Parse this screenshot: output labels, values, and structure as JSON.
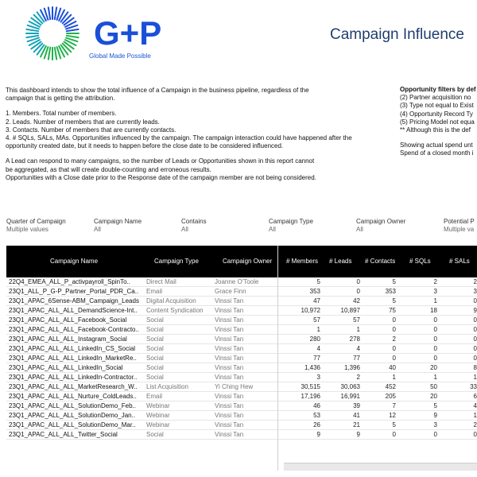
{
  "brand": {
    "logo_text": "G+P",
    "tagline": "Global Made Possible",
    "colors": {
      "blue": "#1a4fd8",
      "green": "#21b24b",
      "teal": "#13a3b8"
    }
  },
  "title": "Campaign Influence",
  "intro": {
    "lines": [
      "This dashboard intends to show the total influence of a Campaign in the business pipeline, regardless of the",
      "campaign that is getting the attribution.",
      "",
      "1. Members. Total number of members.",
      "2. Leads. Number of members that are currently leads.",
      "3. Contacts. Number of members that are currently contacts.",
      "4. # SQLs, SALs, MAs. Opportunities influenced by the campaign. The campaign interaction could have happened after the",
      "opportunity created date, but it needs to happen before the close date to be considered influenced.",
      "",
      "A Lead can respond to many campaigns, so the number of Leads or Opportunities shown in this report cannot",
      "be aggregated, as that will create double-counting and erroneous results.",
      "Opportunities with a Close date prior to the Response date of the campaign member are not being considered."
    ]
  },
  "opp_filters": {
    "heading": "Opportunity filters by def",
    "lines": [
      "(2) Partner acquisition no",
      "(3) Type not equal to Exist",
      "(4) Opportunity Record Ty",
      "(5) Pricing Model not equa",
      "** Although this is the def",
      "",
      "Showing actual spend unt",
      "Spend of a closed month i"
    ]
  },
  "filters": [
    {
      "label": "Quarter of Campaign",
      "value": "Multiple values"
    },
    {
      "label": "Campaign Name",
      "value": "All"
    },
    {
      "label": "Contains",
      "value": "All"
    },
    {
      "label": "Campaign Type",
      "value": "All"
    },
    {
      "label": "Campaign Owner",
      "value": "All"
    },
    {
      "label": "Potential P",
      "value": "Multiple va"
    }
  ],
  "table": {
    "headers": {
      "name": "Campaign Name",
      "type": "Campaign Type",
      "owner": "Campaign Owner",
      "members": "# Members",
      "leads": "# Leads",
      "contacts": "# Contacts",
      "sqls": "# SQLs",
      "sals": "# SALs"
    },
    "rows": [
      [
        "22Q4_EMEA_ALL_P_activpayroll_SpinTo..",
        "Direct Mail",
        "Joanne O'Toole",
        "5",
        "0",
        "5",
        "2",
        "2"
      ],
      [
        "23Q1_ALL_P_G-P_Partner_Portal_PDR_Ca..",
        "Email",
        "Grace Finn",
        "353",
        "0",
        "353",
        "3",
        "3"
      ],
      [
        "23Q1_APAC_6Sense-ABM_Campaign_Leads",
        "Digital Acquisition",
        "Vinssi Tan",
        "47",
        "42",
        "5",
        "1",
        "0"
      ],
      [
        "23Q1_APAC_ALL_ALL_DemandScience-Int..",
        "Content Syndication",
        "Vinssi Tan",
        "10,972",
        "10,897",
        "75",
        "18",
        "9"
      ],
      [
        "23Q1_APAC_ALL_ALL_Facebook_Social",
        "Social",
        "Vinssi Tan",
        "57",
        "57",
        "0",
        "0",
        "0"
      ],
      [
        "23Q1_APAC_ALL_ALL_Facebook-Contracto..",
        "Social",
        "Vinssi Tan",
        "1",
        "1",
        "0",
        "0",
        "0"
      ],
      [
        "23Q1_APAC_ALL_ALL_Instagram_Social",
        "Social",
        "Vinssi Tan",
        "280",
        "278",
        "2",
        "0",
        "0"
      ],
      [
        "23Q1_APAC_ALL_ALL_LinkedIn_CS_Social",
        "Social",
        "Vinssi Tan",
        "4",
        "4",
        "0",
        "0",
        "0"
      ],
      [
        "23Q1_APAC_ALL_ALL_LinkedIn_MarketRe..",
        "Social",
        "Vinssi Tan",
        "77",
        "77",
        "0",
        "0",
        "0"
      ],
      [
        "23Q1_APAC_ALL_ALL_LinkedIn_Social",
        "Social",
        "Vinssi Tan",
        "1,436",
        "1,396",
        "40",
        "20",
        "8"
      ],
      [
        "23Q1_APAC_ALL_ALL_LinkedIn-Contractor..",
        "Social",
        "Vinssi Tan",
        "3",
        "2",
        "1",
        "1",
        "1"
      ],
      [
        "23Q1_APAC_ALL_ALL_MarketResearch_W..",
        "List Acquisition",
        "Yi Ching Hew",
        "30,515",
        "30,063",
        "452",
        "50",
        "33"
      ],
      [
        "23Q1_APAC_ALL_ALL_Nurture_ColdLeads..",
        "Email",
        "Vinssi Tan",
        "17,196",
        "16,991",
        "205",
        "20",
        "6"
      ],
      [
        "23Q1_APAC_ALL_ALL_SolutionDemo_Feb..",
        "Webinar",
        "Vinssi Tan",
        "46",
        "39",
        "7",
        "5",
        "4"
      ],
      [
        "23Q1_APAC_ALL_ALL_SolutionDemo_Jan..",
        "Webinar",
        "Vinssi Tan",
        "53",
        "41",
        "12",
        "9",
        "1"
      ],
      [
        "23Q1_APAC_ALL_ALL_SolutionDemo_Mar..",
        "Webinar",
        "Vinssi Tan",
        "26",
        "21",
        "5",
        "3",
        "2"
      ],
      [
        "23Q1_APAC_ALL_ALL_Twitter_Social",
        "Social",
        "Vinssi Tan",
        "9",
        "9",
        "0",
        "0",
        "0"
      ]
    ]
  }
}
